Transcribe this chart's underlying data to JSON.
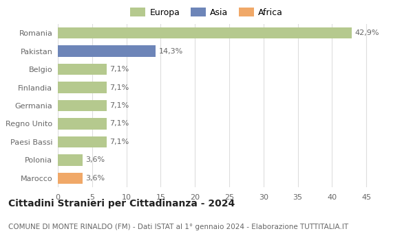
{
  "countries": [
    "Romania",
    "Pakistan",
    "Belgio",
    "Finlandia",
    "Germania",
    "Regno Unito",
    "Paesi Bassi",
    "Polonia",
    "Marocco"
  ],
  "values": [
    42.9,
    14.3,
    7.1,
    7.1,
    7.1,
    7.1,
    7.1,
    3.6,
    3.6
  ],
  "labels": [
    "42,9%",
    "14,3%",
    "7,1%",
    "7,1%",
    "7,1%",
    "7,1%",
    "7,1%",
    "3,6%",
    "3,6%"
  ],
  "colors": [
    "#b5c98e",
    "#6d85b8",
    "#b5c98e",
    "#b5c98e",
    "#b5c98e",
    "#b5c98e",
    "#b5c98e",
    "#b5c98e",
    "#f0a868"
  ],
  "legend_labels": [
    "Europa",
    "Asia",
    "Africa"
  ],
  "legend_colors": [
    "#b5c98e",
    "#6d85b8",
    "#f0a868"
  ],
  "title": "Cittadini Stranieri per Cittadinanza - 2024",
  "subtitle": "COMUNE DI MONTE RINALDO (FM) - Dati ISTAT al 1° gennaio 2024 - Elaborazione TUTTITALIA.IT",
  "xlim": [
    0,
    47
  ],
  "xticks": [
    0,
    5,
    10,
    15,
    20,
    25,
    30,
    35,
    40,
    45
  ],
  "bg_color": "#ffffff",
  "grid_color": "#dddddd",
  "bar_height": 0.62,
  "title_fontsize": 10,
  "subtitle_fontsize": 7.5,
  "label_fontsize": 8,
  "tick_fontsize": 8,
  "legend_fontsize": 9
}
